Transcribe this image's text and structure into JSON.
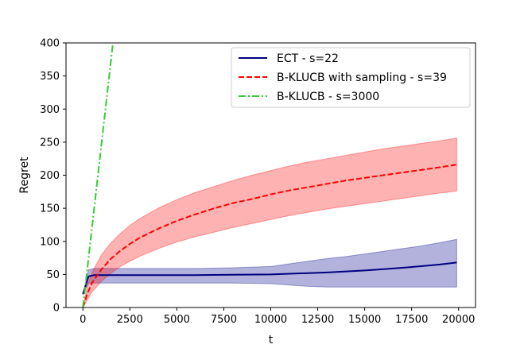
{
  "chart_data": {
    "type": "line",
    "xlabel": "t",
    "ylabel": "Regret",
    "xlim": [
      -900,
      20900
    ],
    "ylim": [
      0,
      400
    ],
    "xticks": [
      0,
      2500,
      5000,
      7500,
      10000,
      12500,
      15000,
      17500,
      20000
    ],
    "yticks": [
      0,
      50,
      100,
      150,
      200,
      250,
      300,
      350,
      400
    ],
    "grid": false,
    "legend_position": "top-right",
    "series": [
      {
        "name": "ECT - s=22",
        "color": "#000080",
        "style": "solid",
        "band_color": "#00008c",
        "x": [
          0,
          300,
          600,
          1000,
          2000,
          4000,
          6000,
          8000,
          10000,
          11000,
          12000,
          13000,
          14000,
          15000,
          16000,
          17000,
          18000,
          19000,
          19900
        ],
        "values": [
          20,
          47,
          49,
          49,
          49,
          49,
          49,
          49.5,
          50,
          51,
          52,
          53,
          54.5,
          56,
          58,
          60,
          62.5,
          65,
          68
        ],
        "lower": [
          20,
          37,
          37,
          37,
          37,
          37,
          37,
          37,
          36,
          34,
          32,
          31,
          31,
          31,
          31,
          31,
          31,
          31,
          31
        ],
        "upper": [
          20,
          57,
          59,
          59,
          59,
          59,
          59,
          60,
          62,
          66,
          70,
          74,
          77,
          81,
          85,
          89,
          93,
          98,
          103
        ]
      },
      {
        "name": "B-KLUCB with sampling - s=39",
        "color": "#ff0000",
        "style": "dashed",
        "band_color": "#ff0000",
        "x": [
          0,
          250,
          500,
          1000,
          1500,
          2000,
          2500,
          3000,
          4000,
          5000,
          6000,
          7000,
          8000,
          9000,
          10000,
          11000,
          12000,
          13000,
          14000,
          15000,
          16000,
          17000,
          18000,
          19000,
          19900
        ],
        "values": [
          0,
          22,
          38,
          58,
          74,
          86,
          96,
          105,
          119,
          131,
          141,
          150,
          158,
          164,
          171,
          177,
          182,
          187,
          192,
          196,
          200,
          204,
          208,
          212,
          216
        ],
        "lower": [
          0,
          12,
          24,
          40,
          52,
          62,
          70,
          77,
          89,
          99,
          107,
          114,
          121,
          127,
          133,
          139,
          144,
          149,
          153,
          157,
          161,
          165,
          169,
          173,
          176
        ],
        "upper": [
          0,
          34,
          54,
          80,
          98,
          112,
          124,
          134,
          150,
          163,
          174,
          183,
          192,
          200,
          207,
          214,
          220,
          225,
          230,
          235,
          240,
          244,
          248,
          252,
          256
        ]
      },
      {
        "name": "B-KLUCB - s=3000",
        "color": "#32cd32",
        "style": "dashdot",
        "x": [
          0,
          1600
        ],
        "values": [
          0,
          400
        ]
      }
    ]
  }
}
